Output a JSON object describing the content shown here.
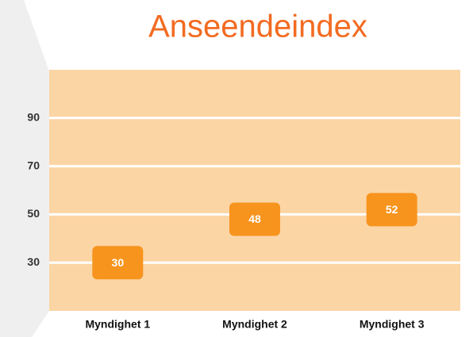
{
  "chart_data": {
    "type": "marker",
    "title": "Anseendeindex",
    "categories": [
      "Myndighet 1",
      "Myndighet 2",
      "Myndighet 3"
    ],
    "values": [
      30,
      48,
      52
    ],
    "color": "#f7941d",
    "ylim": [
      10,
      110
    ],
    "yticks": [
      30,
      50,
      70,
      90
    ],
    "grid": true
  }
}
